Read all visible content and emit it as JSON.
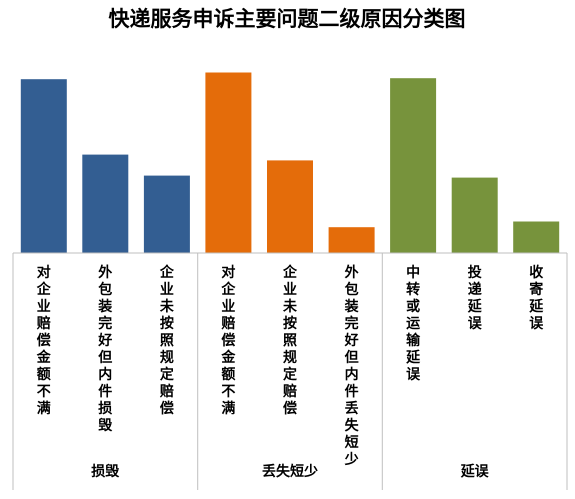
{
  "chart_data": {
    "type": "bar",
    "title": "快递服务申诉主要问题二级原因分类图",
    "xlabel": "",
    "ylabel": "",
    "grid": false,
    "legend": "none",
    "groups": [
      {
        "label": "损毁",
        "color": "#335e92",
        "start": 0,
        "count": 3
      },
      {
        "label": "丢失短少",
        "color": "#e46c0a",
        "start": 3,
        "count": 3
      },
      {
        "label": "延误",
        "color": "#77933c",
        "start": 6,
        "count": 3
      }
    ],
    "categories": [
      "对企业赔偿金额不满",
      "外包装完好但内件损毁",
      "企业未按照规定赔偿",
      "对企业赔偿金额不满",
      "企业未按照规定赔偿",
      "外包装完好但内件丢失短少",
      "中转或运输延误",
      "投递延误",
      "收寄延误"
    ],
    "values": [
      182,
      103,
      81,
      189,
      97,
      27,
      183,
      79,
      33
    ],
    "ylim": [
      0,
      200
    ]
  }
}
